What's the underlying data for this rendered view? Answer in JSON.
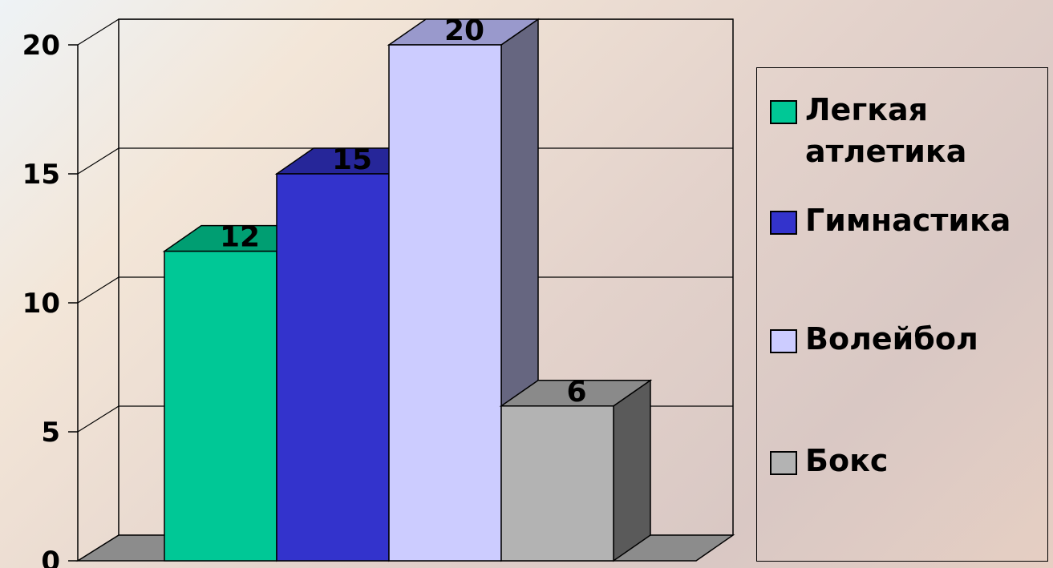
{
  "chart_data": {
    "type": "bar",
    "title": "",
    "xlabel": "",
    "ylabel": "",
    "ylim": [
      0,
      20
    ],
    "y_ticks": [
      "0",
      "5",
      "10",
      "15",
      "20"
    ],
    "grid": true,
    "legend_position": "right",
    "series": [
      {
        "name": "Легкая атлетика",
        "value": 12,
        "label": "12",
        "color": "#00c896",
        "top_color": "#009e72",
        "side_color": "#007a58"
      },
      {
        "name": "Гимнастика",
        "value": 15,
        "label": "15",
        "color": "#3333cc",
        "top_color": "#262699",
        "side_color": "#1e1e80"
      },
      {
        "name": "Волейбол",
        "value": 20,
        "label": "20",
        "color": "#ccccff",
        "top_color": "#9999cc",
        "side_color": "#666680"
      },
      {
        "name": "Бокс",
        "value": 6,
        "label": "6",
        "color": "#b3b3b3",
        "top_color": "#8a8a8a",
        "side_color": "#5a5a5a"
      }
    ]
  }
}
